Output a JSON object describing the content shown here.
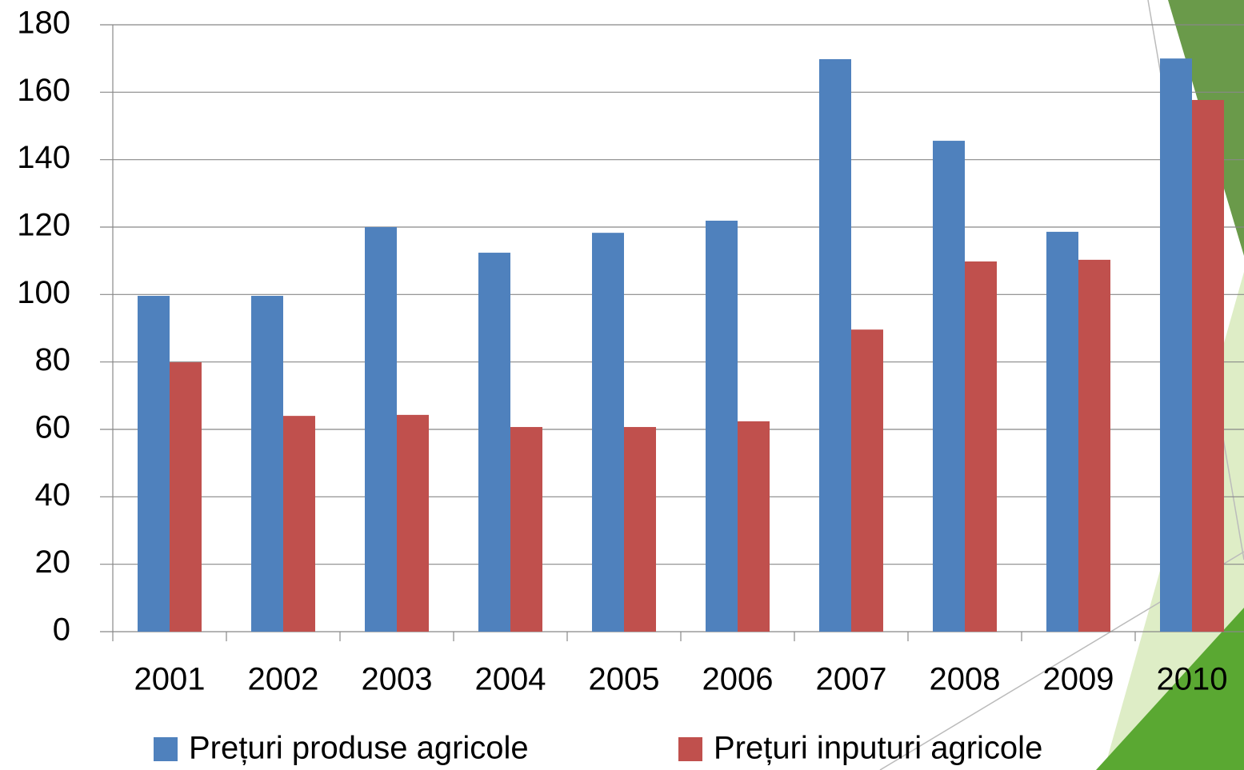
{
  "chart_data": {
    "type": "bar",
    "categories": [
      "2001",
      "2002",
      "2003",
      "2004",
      "2005",
      "2006",
      "2007",
      "2008",
      "2009",
      "2010"
    ],
    "series": [
      {
        "name": "Prețuri produse agricole",
        "color": "#4f81bd",
        "values": [
          99.6,
          99.6,
          120,
          112.4,
          118.3,
          121.9,
          169.8,
          145.6,
          118.6,
          170
        ]
      },
      {
        "name": "Prețuri inputuri agricole",
        "color": "#c0504d",
        "values": [
          79.9,
          64,
          64.3,
          60.7,
          60.7,
          62.4,
          89.6,
          109.8,
          110.3,
          157.7
        ]
      }
    ],
    "ylim": [
      0,
      180
    ],
    "yticks": [
      0,
      20,
      40,
      60,
      80,
      100,
      120,
      140,
      160,
      180
    ],
    "grid": true
  }
}
